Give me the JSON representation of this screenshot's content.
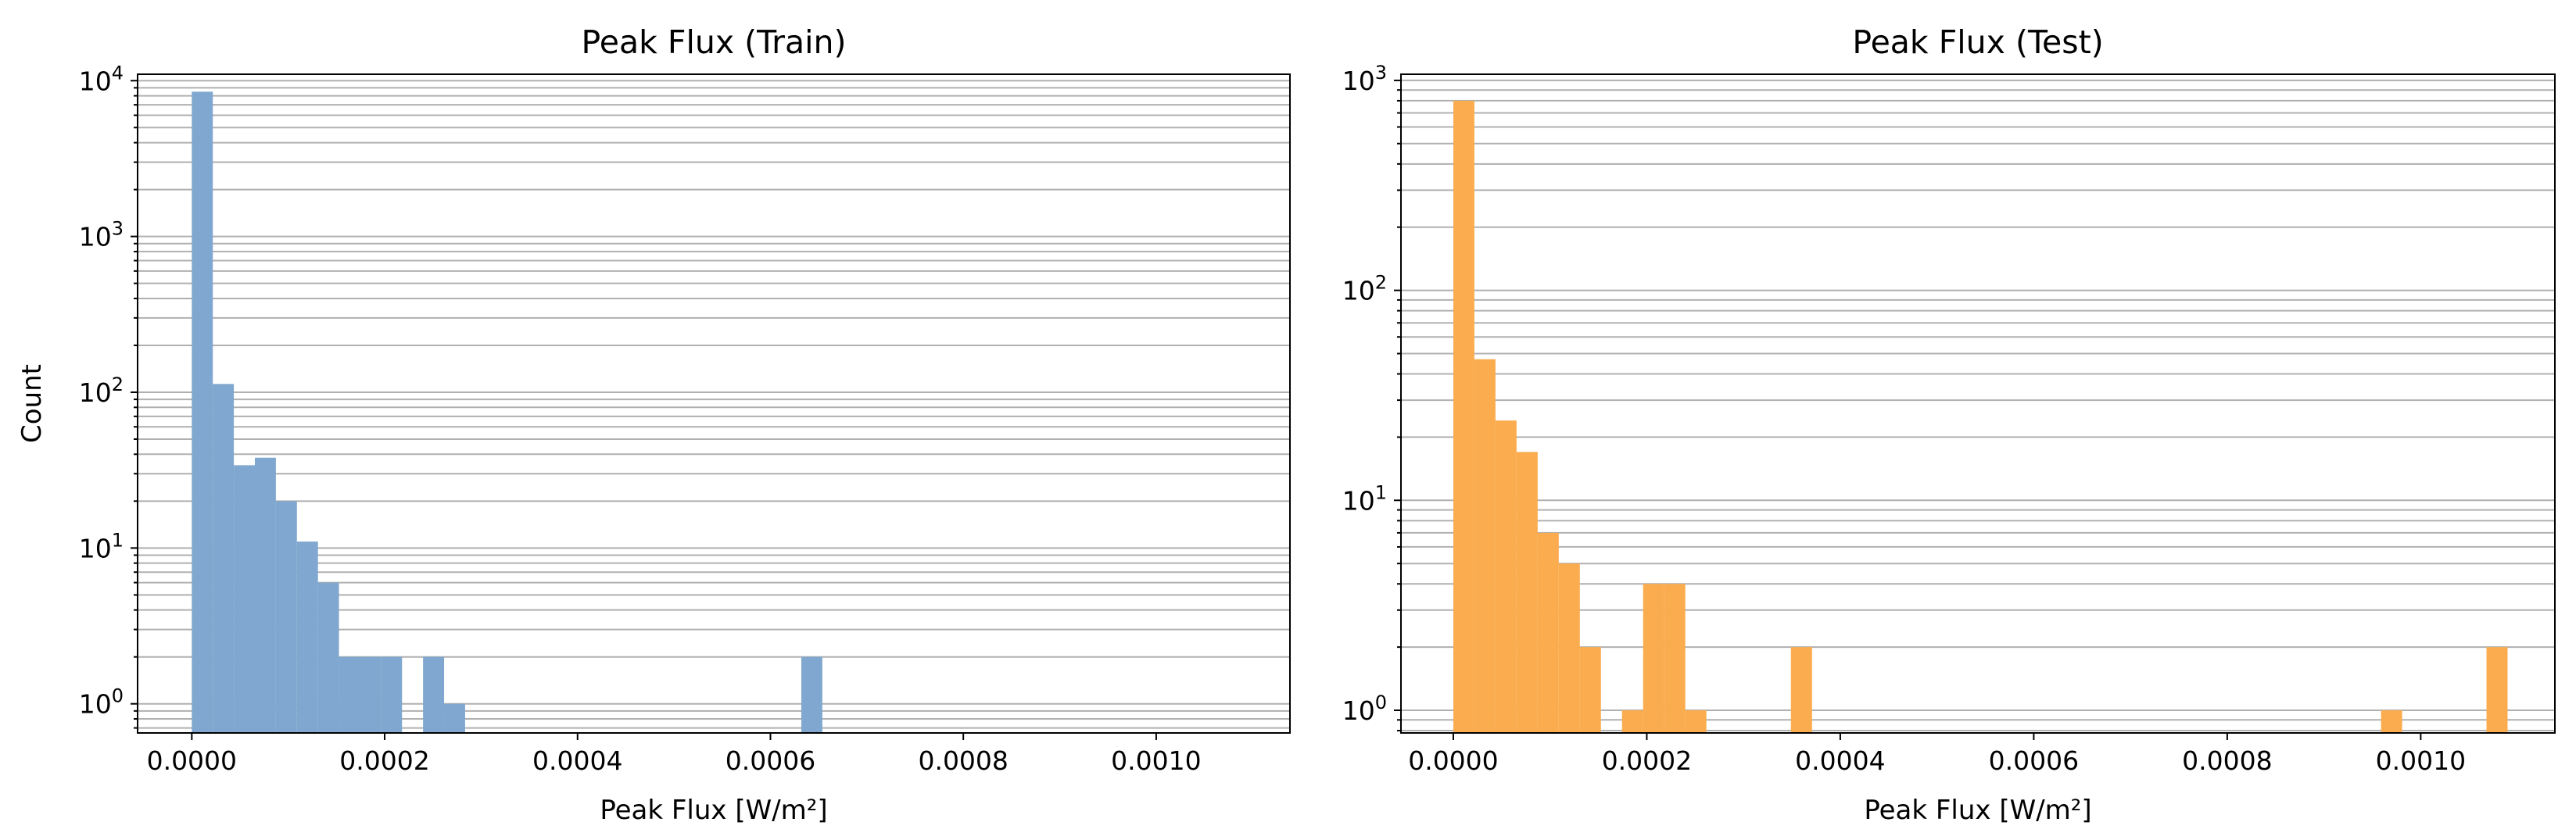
{
  "chart_data": [
    {
      "type": "bar",
      "title": "Peak Flux (Train)",
      "xlabel": "Peak Flux [W/m²]",
      "ylabel": "Count",
      "yscale": "log",
      "grid": "y-major-and-minor",
      "color": "#7fa7cf",
      "xlim": [
        -5.62e-05,
        0.0011387
      ],
      "ylim": [
        0.65,
        11000
      ],
      "x_ticks": [
        0,
        0.0002,
        0.0004,
        0.0006,
        0.0008,
        0.001
      ],
      "x_tick_labels": [
        "0.0000",
        "0.0002",
        "0.0004",
        "0.0006",
        "0.0008",
        "0.0010"
      ],
      "y_ticks": [
        1,
        10,
        100,
        1000,
        10000
      ],
      "y_tick_labels": [
        {
          "base": "10",
          "exp": "0"
        },
        {
          "base": "10",
          "exp": "1"
        },
        {
          "base": "10",
          "exp": "2"
        },
        {
          "base": "10",
          "exp": "3"
        },
        {
          "base": "10",
          "exp": "4"
        }
      ],
      "bin_width": 2.18e-05,
      "bins": [
        {
          "x0": 0.0,
          "count": 8500
        },
        {
          "x0": 2.18e-05,
          "count": 113
        },
        {
          "x0": 4.36e-05,
          "count": 34
        },
        {
          "x0": 6.54e-05,
          "count": 38
        },
        {
          "x0": 8.72e-05,
          "count": 20
        },
        {
          "x0": 0.000109,
          "count": 11
        },
        {
          "x0": 0.0001308,
          "count": 6
        },
        {
          "x0": 0.0001526,
          "count": 2
        },
        {
          "x0": 0.0001744,
          "count": 2
        },
        {
          "x0": 0.0001962,
          "count": 2
        },
        {
          "x0": 0.0002398,
          "count": 2
        },
        {
          "x0": 0.0002616,
          "count": 1
        },
        {
          "x0": 0.000632,
          "count": 2
        }
      ]
    },
    {
      "type": "bar",
      "title": "Peak Flux (Test)",
      "xlabel": "Peak Flux [W/m²]",
      "ylabel": "",
      "yscale": "log",
      "grid": "y-major-and-minor",
      "color": "#fbac4f",
      "xlim": [
        -5.41e-05,
        0.0011387
      ],
      "ylim": [
        0.78,
        1070
      ],
      "x_ticks": [
        0,
        0.0002,
        0.0004,
        0.0006,
        0.0008,
        0.001
      ],
      "x_tick_labels": [
        "0.0000",
        "0.0002",
        "0.0004",
        "0.0006",
        "0.0008",
        "0.0010"
      ],
      "y_ticks": [
        1,
        10,
        100,
        1000
      ],
      "y_tick_labels": [
        {
          "base": "10",
          "exp": "0"
        },
        {
          "base": "10",
          "exp": "1"
        },
        {
          "base": "10",
          "exp": "2"
        },
        {
          "base": "10",
          "exp": "3"
        }
      ],
      "bin_width": 2.18e-05,
      "bins": [
        {
          "x0": 0.0,
          "count": 800
        },
        {
          "x0": 2.18e-05,
          "count": 47
        },
        {
          "x0": 4.36e-05,
          "count": 24
        },
        {
          "x0": 6.54e-05,
          "count": 17
        },
        {
          "x0": 8.72e-05,
          "count": 7
        },
        {
          "x0": 0.000109,
          "count": 5
        },
        {
          "x0": 0.0001308,
          "count": 2
        },
        {
          "x0": 0.0001744,
          "count": 1
        },
        {
          "x0": 0.0001962,
          "count": 4
        },
        {
          "x0": 0.000218,
          "count": 4
        },
        {
          "x0": 0.0002398,
          "count": 1
        },
        {
          "x0": 0.000349,
          "count": 2
        },
        {
          "x0": 0.000959,
          "count": 1
        },
        {
          "x0": 0.001068,
          "count": 2
        }
      ]
    }
  ]
}
